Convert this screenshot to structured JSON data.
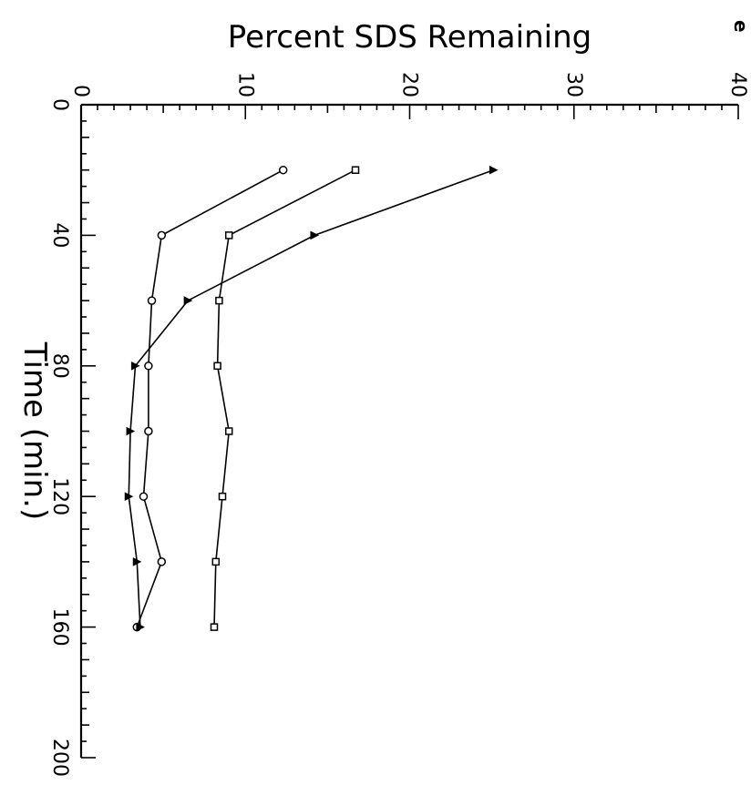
{
  "chart_data": {
    "type": "line",
    "orientation": "rotated-90-clockwise",
    "title": "",
    "corner_text": "e",
    "xlabel": "Time (min.)",
    "ylabel": "Percent SDS Remaining",
    "xlim": [
      0,
      200
    ],
    "ylim": [
      0,
      40
    ],
    "x_ticks": [
      0,
      40,
      80,
      120,
      160,
      200
    ],
    "y_ticks": [
      0,
      10,
      20,
      30,
      40
    ],
    "grid": false,
    "legend": "none",
    "series": [
      {
        "marker": "circle",
        "x": [
          20,
          40,
          60,
          80,
          100,
          120,
          140,
          160
        ],
        "values": [
          12.3,
          4.9,
          4.3,
          4.1,
          4.1,
          3.8,
          4.9,
          3.4
        ]
      },
      {
        "marker": "square",
        "x": [
          20,
          40,
          60,
          80,
          100,
          120,
          140,
          160
        ],
        "values": [
          16.7,
          9.0,
          8.4,
          8.3,
          9.0,
          8.6,
          8.2,
          8.1
        ]
      },
      {
        "marker": "triangle",
        "x": [
          20,
          40,
          60,
          80,
          100,
          120,
          140,
          160
        ],
        "values": [
          25.1,
          14.2,
          6.5,
          3.3,
          3.0,
          2.9,
          3.4,
          3.6
        ]
      }
    ]
  }
}
